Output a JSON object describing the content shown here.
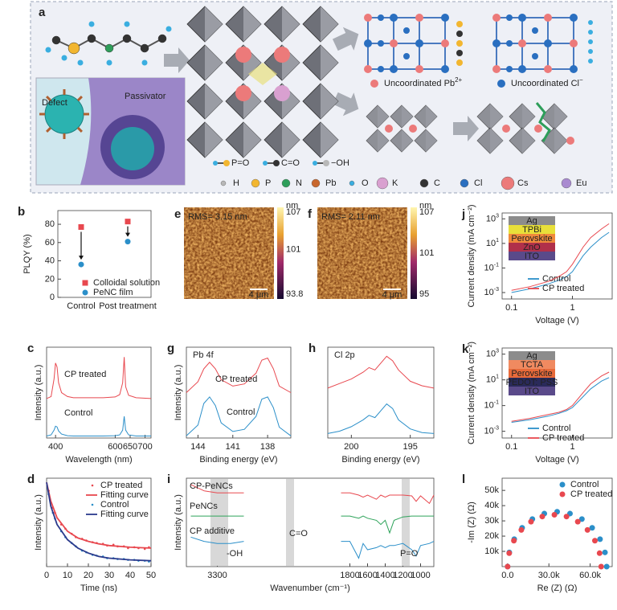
{
  "schematic": {
    "panel": "a",
    "defect": "Defect",
    "passivator": "Passivator",
    "bonds": [
      "P=O",
      "C=O",
      "−OH"
    ],
    "uncoordinated": [
      {
        "text": "Uncoordinated Pb",
        "sup": "2+"
      },
      {
        "text": "Uncoordinated Cl",
        "sup": "−"
      }
    ],
    "elements": [
      {
        "name": "H",
        "color": "#b8b8b8"
      },
      {
        "name": "P",
        "color": "#f2b630"
      },
      {
        "name": "N",
        "color": "#2e9e5a"
      },
      {
        "name": "Pb",
        "color": "#c8662c"
      },
      {
        "name": "O",
        "color": "#3aaee0"
      },
      {
        "name": "K",
        "color": "#d9a0d0"
      },
      {
        "name": "C",
        "color": "#333333"
      },
      {
        "name": "Cl",
        "color": "#2a6fc0"
      },
      {
        "name": "Cs",
        "color": "#ec7a7a"
      },
      {
        "name": "Eu",
        "color": "#a98ad0"
      }
    ]
  },
  "afm": [
    {
      "panel": "e",
      "rms": "RMS= 3.15 nm",
      "unit": "nm",
      "colorbar": [
        107,
        101,
        93.8
      ],
      "scale_bar": "4 μm"
    },
    {
      "panel": "f",
      "rms": "RMS= 2.11 nm",
      "unit": "nm",
      "colorbar": [
        107,
        101,
        95.0
      ],
      "scale_bar": "4 μm"
    }
  ],
  "chart_data": [
    {
      "type": "scatter",
      "panel": "b",
      "ylabel": "PLQY (%)",
      "categories": [
        "Control",
        "Post treatment"
      ],
      "ylim": [
        0,
        95
      ],
      "yticks": [
        0,
        20,
        40,
        60,
        80
      ],
      "series": [
        {
          "name": "Colloidal solution",
          "color": "#e8484f",
          "marker": "square",
          "values": [
            77,
            83
          ]
        },
        {
          "name": "PeNC film",
          "color": "#2b8fc9",
          "marker": "circle",
          "values": [
            36,
            61
          ]
        }
      ]
    },
    {
      "type": "line",
      "panel": "j",
      "xlabel": "Voltage (V)",
      "ylabel": "Current density (mA cm⁻²)",
      "xlog": true,
      "ylog": true,
      "xlim": [
        0.07,
        4.5
      ],
      "ylim": [
        0.0003,
        3000
      ],
      "xticks": [
        0.1,
        1
      ],
      "yticks": [
        {
          "value": 0.001,
          "label": "10",
          "exp": "-3"
        },
        {
          "value": 0.1,
          "label": "10",
          "exp": "-1"
        },
        {
          "value": 10,
          "label": "10",
          "exp": "1"
        },
        {
          "value": 1000,
          "label": "10",
          "exp": "3"
        }
      ],
      "x": [
        0.1,
        0.2,
        0.4,
        0.6,
        0.8,
        1,
        1.5,
        2,
        3,
        4
      ],
      "layers": [
        {
          "name": "Ag",
          "color": "#8c8c8c"
        },
        {
          "name": "TPBi",
          "color": "#e8e03a"
        },
        {
          "name": "Perovskite",
          "color": "#f08a3c"
        },
        {
          "name": "ZnO",
          "color": "#b0304a"
        },
        {
          "name": "ITO",
          "color": "#5a4a8a"
        }
      ],
      "series": [
        {
          "name": "Control",
          "color": "#2b8fc9",
          "values": [
            0.001,
            0.002,
            0.005,
            0.01,
            0.02,
            0.05,
            1,
            5,
            30,
            80
          ]
        },
        {
          "name": "CP treated",
          "color": "#e8484f",
          "values": [
            0.0015,
            0.003,
            0.008,
            0.02,
            0.05,
            0.2,
            5,
            30,
            150,
            400
          ]
        }
      ]
    },
    {
      "type": "line",
      "panel": "c",
      "xlabel": "Wavelength (nm)",
      "ylabel": "Intensity (a.u.)",
      "xlim": [
        370,
        720
      ],
      "ylim": [
        0,
        2.3
      ],
      "xticks": [
        400,
        600,
        650,
        700
      ],
      "x": [
        370,
        385,
        395,
        400,
        405,
        410,
        420,
        440,
        460,
        560,
        600,
        615,
        625,
        630,
        635,
        645,
        670,
        720
      ],
      "annotations": [
        "CP treated",
        "Control"
      ],
      "series": [
        {
          "name": "CP treated",
          "color": "#e8484f",
          "values": [
            1.0,
            1.05,
            1.5,
            1.9,
            1.8,
            1.4,
            1.15,
            1.05,
            1.02,
            1.02,
            1.04,
            1.1,
            1.4,
            2.05,
            1.3,
            1.08,
            1.02,
            1.0
          ]
        },
        {
          "name": "Control",
          "color": "#2b8fc9",
          "values": [
            0.05,
            0.08,
            0.2,
            0.3,
            0.28,
            0.18,
            0.1,
            0.06,
            0.05,
            0.05,
            0.06,
            0.08,
            0.2,
            0.55,
            0.2,
            0.08,
            0.05,
            0.05
          ]
        }
      ]
    },
    {
      "type": "line",
      "panel": "g",
      "title": "Pb 4f",
      "xlabel": "Binding energy (eV)",
      "ylabel": "Intensity (a.u.)",
      "xlim": [
        145,
        136
      ],
      "ylim": [
        0,
        2.1
      ],
      "xticks": [
        144,
        141,
        138
      ],
      "x": [
        145,
        144,
        143.5,
        143,
        142.5,
        142,
        141,
        140,
        139,
        138.5,
        138,
        137.5,
        137,
        136
      ],
      "annotations": [
        "CP treated",
        "Control"
      ],
      "series": [
        {
          "name": "CP treated",
          "color": "#e8484f",
          "values": [
            1.05,
            1.3,
            1.6,
            1.75,
            1.6,
            1.35,
            1.2,
            1.25,
            1.5,
            1.8,
            1.85,
            1.6,
            1.2,
            1.05
          ]
        },
        {
          "name": "Control",
          "color": "#2b8fc9",
          "values": [
            0.05,
            0.3,
            0.8,
            0.95,
            0.75,
            0.35,
            0.15,
            0.2,
            0.5,
            0.9,
            0.95,
            0.7,
            0.25,
            0.05
          ]
        }
      ]
    },
    {
      "type": "line",
      "panel": "h",
      "title": "Cl 2p",
      "xlabel": "Binding energy (eV)",
      "xlim": [
        202,
        193
      ],
      "ylim": [
        0,
        2
      ],
      "xticks": [
        200,
        195
      ],
      "x": [
        202,
        201,
        200,
        199,
        198.5,
        198,
        197.5,
        197,
        196.5,
        196,
        195,
        194,
        193
      ],
      "series": [
        {
          "name": "CP treated",
          "color": "#e8484f",
          "values": [
            1.1,
            1.2,
            1.3,
            1.45,
            1.55,
            1.5,
            1.65,
            1.8,
            1.7,
            1.5,
            1.25,
            1.15,
            1.1
          ]
        },
        {
          "name": "Control",
          "color": "#2b8fc9",
          "values": [
            0.1,
            0.15,
            0.25,
            0.4,
            0.5,
            0.45,
            0.6,
            0.75,
            0.65,
            0.4,
            0.2,
            0.12,
            0.1
          ]
        }
      ]
    },
    {
      "type": "line",
      "panel": "k",
      "xlabel": "Voltage (V)",
      "ylabel": "Current density (mA cm⁻²)",
      "xlog": true,
      "ylog": true,
      "xlim": [
        0.07,
        4.5
      ],
      "ylim": [
        0.0003,
        3000
      ],
      "xticks": [
        0.1,
        1
      ],
      "yticks": [
        {
          "value": 0.001,
          "label": "10",
          "exp": "-3"
        },
        {
          "value": 0.1,
          "label": "10",
          "exp": "-1"
        },
        {
          "value": 10,
          "label": "10",
          "exp": "1"
        },
        {
          "value": 1000,
          "label": "10",
          "exp": "3"
        }
      ],
      "x": [
        0.1,
        0.2,
        0.4,
        0.6,
        0.8,
        1,
        1.5,
        2,
        3,
        4
      ],
      "layers": [
        {
          "name": "Ag",
          "color": "#8c8c8c"
        },
        {
          "name": "TCTA",
          "color": "#f08a60"
        },
        {
          "name": "Perovskite",
          "color": "#e86a3a"
        },
        {
          "name": "PEDOT: PSS",
          "color": "#2a2a5a"
        },
        {
          "name": "ITO",
          "color": "#5a4a8a"
        }
      ],
      "series": [
        {
          "name": "Control",
          "color": "#2b8fc9",
          "values": [
            0.005,
            0.008,
            0.015,
            0.025,
            0.04,
            0.07,
            0.5,
            2,
            8,
            15
          ]
        },
        {
          "name": "CP treated",
          "color": "#e8484f",
          "values": [
            0.006,
            0.01,
            0.02,
            0.03,
            0.05,
            0.1,
            1,
            5,
            20,
            40
          ]
        }
      ]
    },
    {
      "type": "line",
      "panel": "d",
      "xlabel": "Time (ns)",
      "ylabel": "Intensity (a.u.)",
      "xlim": [
        0,
        50
      ],
      "ylim": [
        0,
        1.05
      ],
      "xticks": [
        0,
        10,
        20,
        30,
        40,
        50
      ],
      "series": [
        {
          "name": "CP treated",
          "color": "#e8484f",
          "marker": "dot",
          "x": [
            1,
            3,
            4,
            7,
            9,
            12,
            14,
            17,
            19,
            22,
            24,
            27,
            29,
            32,
            34,
            37,
            39,
            42,
            44,
            47,
            49
          ],
          "values": [
            0.9,
            0.7,
            0.64,
            0.5,
            0.45,
            0.39,
            0.35,
            0.33,
            0.31,
            0.29,
            0.28,
            0.27,
            0.25,
            0.26,
            0.24,
            0.24,
            0.22,
            0.23,
            0.22,
            0.21,
            0.23
          ]
        },
        {
          "name": "Fitting curve",
          "color": "#e8484f",
          "x": [
            0,
            2,
            5,
            10,
            15,
            20,
            25,
            30,
            40,
            50
          ],
          "values": [
            1,
            0.78,
            0.58,
            0.42,
            0.34,
            0.3,
            0.27,
            0.25,
            0.23,
            0.22
          ]
        },
        {
          "name": "Control",
          "color": "#2b8fc9",
          "marker": "dot",
          "x": [
            1,
            3,
            4,
            7,
            9,
            12,
            14,
            17,
            19,
            22,
            24,
            27,
            29,
            32,
            34,
            37,
            39,
            42,
            44,
            47,
            49
          ],
          "values": [
            0.86,
            0.64,
            0.57,
            0.42,
            0.35,
            0.28,
            0.24,
            0.19,
            0.17,
            0.14,
            0.13,
            0.12,
            0.1,
            0.1,
            0.09,
            0.09,
            0.08,
            0.08,
            0.07,
            0.07,
            0.06
          ]
        },
        {
          "name": "Fitting curve",
          "color": "#2b3a8c",
          "x": [
            0,
            2,
            5,
            10,
            15,
            20,
            25,
            30,
            40,
            50
          ],
          "values": [
            1,
            0.72,
            0.5,
            0.32,
            0.22,
            0.16,
            0.12,
            0.1,
            0.08,
            0.07
          ]
        }
      ]
    },
    {
      "type": "line",
      "panel": "i",
      "xlabel": "Wavenumber (cm⁻¹)",
      "ylabel": "Intensity (a.u.)",
      "xlim": [
        3650,
        850
      ],
      "ylim": [
        0.3,
        2.4
      ],
      "xticks": [
        3300,
        1800,
        1600,
        1400,
        1200,
        1000
      ],
      "x": [
        3600,
        3450,
        3300,
        3150,
        3000,
        2450,
        1900,
        1800,
        1700,
        1650,
        1600,
        1500,
        1450,
        1400,
        1350,
        1300,
        1200,
        1100,
        1050,
        1000,
        900,
        850
      ],
      "annotations": [
        "CP-PeNCs",
        "PeNCs",
        "CP additive",
        "-OH",
        "C=O",
        "P=O"
      ],
      "series": [
        {
          "name": "CP-PeNCs",
          "color": "#e8484f",
          "values": [
            2.25,
            2.1,
            2.05,
            2.05,
            2.05,
            null,
            2.05,
            2.05,
            2.0,
            1.95,
            2.0,
            1.9,
            2.0,
            1.95,
            2.0,
            2.0,
            2.0,
            1.98,
            1.85,
            1.98,
            1.8,
            2.0
          ]
        },
        {
          "name": "PeNCs",
          "color": "#2ea35a",
          "values": [
            1.5,
            1.5,
            1.5,
            1.5,
            1.5,
            null,
            1.5,
            1.5,
            1.45,
            1.5,
            1.45,
            1.4,
            1.3,
            1.4,
            1.1,
            1.4,
            1.48,
            1.5,
            1.5,
            1.5,
            1.5,
            1.5
          ]
        },
        {
          "name": "CP additive",
          "color": "#2b8fc9",
          "values": [
            1.0,
            0.9,
            0.85,
            0.85,
            0.9,
            null,
            0.9,
            0.9,
            0.5,
            0.85,
            0.7,
            0.75,
            0.8,
            0.75,
            0.8,
            0.8,
            0.85,
            0.7,
            0.55,
            0.8,
            0.85,
            0.9
          ]
        }
      ]
    },
    {
      "type": "scatter",
      "panel": "l",
      "xlabel": "Re (Z) (Ω)",
      "ylabel": "-Im (Z) (Ω)",
      "xlim": [
        -4000,
        76000
      ],
      "ylim": [
        0,
        58000
      ],
      "xticks": [
        {
          "value": 0,
          "label": "0.0"
        },
        {
          "value": 30000,
          "label": "30.0k"
        },
        {
          "value": 60000,
          "label": "60.0k"
        }
      ],
      "yticks": [
        {
          "value": 10000,
          "label": "10k"
        },
        {
          "value": 20000,
          "label": "20k"
        },
        {
          "value": 30000,
          "label": "30k"
        },
        {
          "value": 40000,
          "label": "40k"
        },
        {
          "value": 50000,
          "label": "50k"
        }
      ],
      "series": [
        {
          "name": "Control",
          "color": "#2b8fc9",
          "marker": "circle",
          "x": [
            0,
            1224,
            4824,
            10548,
            18000,
            26676,
            36000,
            45324,
            54000,
            61452,
            67176,
            70776,
            72000
          ],
          "values": [
            0,
            9324,
            18000,
            25452,
            31176,
            34776,
            36000,
            34776,
            31176,
            25452,
            18000,
            9324,
            0
          ]
        },
        {
          "name": "CP treated",
          "color": "#e8484f",
          "marker": "circle",
          "x": [
            0,
            1156,
            4556,
            9962,
            17000,
            25194,
            34000,
            42806,
            51000,
            58038,
            63444,
            66844,
            68000
          ],
          "values": [
            0,
            8806,
            17000,
            24038,
            29444,
            32844,
            34000,
            32844,
            29444,
            24038,
            17000,
            8806,
            0
          ]
        }
      ]
    }
  ]
}
